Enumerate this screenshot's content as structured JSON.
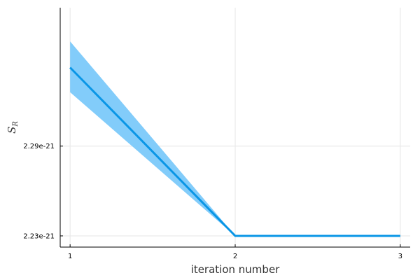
{
  "chart_data": {
    "type": "line",
    "title": "",
    "xlabel": "iteration number",
    "ylabel": {
      "main": "S",
      "sub": "R"
    },
    "x": [
      1,
      2,
      3
    ],
    "series": [
      {
        "values": [
          2.3425e-21,
          2.23e-21,
          2.23e-21
        ],
        "lower": [
          2.326e-21,
          2.23e-21,
          2.23e-21
        ],
        "upper": [
          2.36e-21,
          2.23e-21,
          2.23e-21
        ],
        "color": "#0a96e6",
        "band_color": "#82ccfa"
      }
    ],
    "x_ticks": [
      {
        "value": 1,
        "label": "1"
      },
      {
        "value": 2,
        "label": "2"
      },
      {
        "value": 3,
        "label": "3"
      }
    ],
    "y_ticks": [
      {
        "value": 2.23e-21,
        "label": "2.23e-21"
      },
      {
        "value": 2.29e-21,
        "label": "2.29e-21"
      }
    ],
    "xlim": [
      0.94,
      3.06
    ],
    "ylim": [
      2.2225e-21,
      2.3825e-21
    ],
    "grid": true,
    "legend": "none"
  }
}
